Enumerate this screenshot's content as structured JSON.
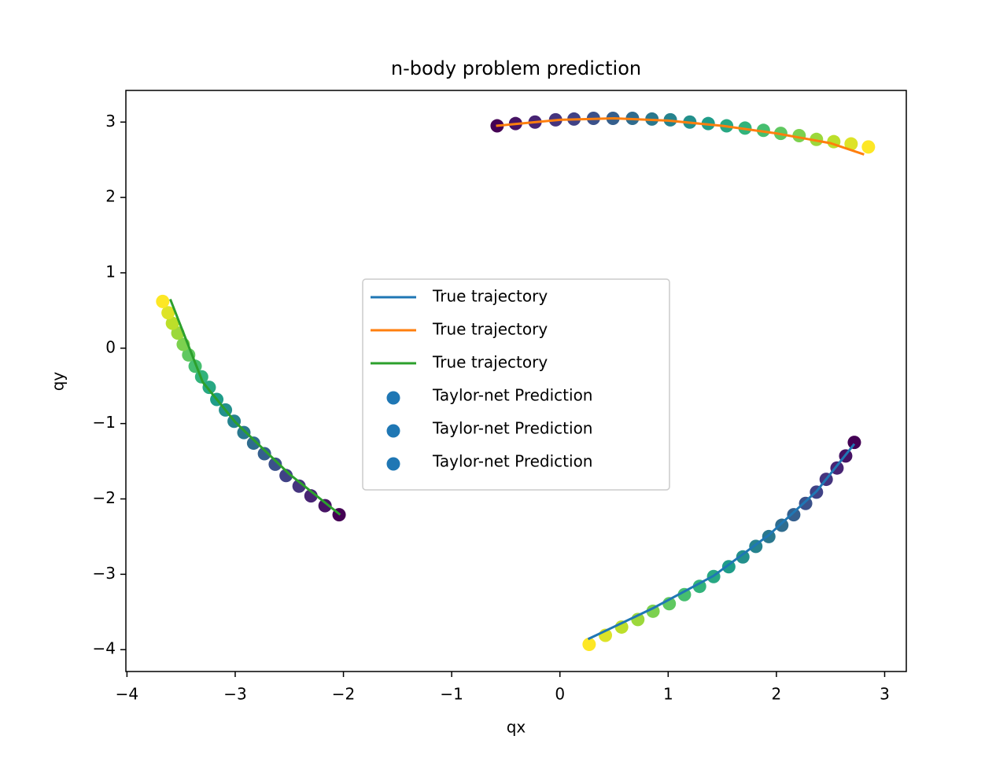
{
  "chart_data": {
    "type": "line",
    "title": "n-body problem prediction",
    "x_label": "qx",
    "y_label": "qy",
    "xlim": [
      -4.01,
      3.2
    ],
    "ylim": [
      -4.29,
      3.42
    ],
    "xticks": [
      {
        "value": -4,
        "label": "−4"
      },
      {
        "value": -3,
        "label": "−3"
      },
      {
        "value": -2,
        "label": "−2"
      },
      {
        "value": -1,
        "label": "−1"
      },
      0,
      1,
      2,
      3
    ],
    "yticks": [
      {
        "value": -4,
        "label": "−4"
      },
      {
        "value": -3,
        "label": "−3"
      },
      {
        "value": -2,
        "label": "−2"
      },
      {
        "value": -1,
        "label": "−1"
      },
      0,
      1,
      2,
      3
    ],
    "legend": "center",
    "series": [
      {
        "name": "True trajectory",
        "type": "line",
        "color": "#1f77b4",
        "x": [
          2.72,
          2.37,
          1.93,
          1.42,
          0.86,
          0.26
        ],
        "y": [
          -1.27,
          -1.9,
          -2.48,
          -3.02,
          -3.45,
          -3.86
        ]
      },
      {
        "name": "True trajectory",
        "type": "line",
        "color": "#ff7f0e",
        "x": [
          -0.59,
          0.0,
          0.5,
          1.0,
          1.5,
          2.0,
          2.5,
          2.81
        ],
        "y": [
          2.95,
          3.03,
          3.05,
          3.02,
          2.95,
          2.85,
          2.72,
          2.57
        ]
      },
      {
        "name": "True trajectory",
        "type": "line",
        "color": "#2ca02c",
        "x": [
          -2.03,
          -2.5,
          -3.0,
          -3.3,
          -3.6
        ],
        "y": [
          -2.21,
          -1.67,
          -0.98,
          -0.45,
          0.65
        ]
      },
      {
        "name": "Taylor-net Prediction",
        "type": "scatter",
        "color": "#1f77b4",
        "colormap": "viridis",
        "x": [
          2.72,
          2.64,
          2.56,
          2.46,
          2.37,
          2.27,
          2.16,
          2.05,
          1.93,
          1.81,
          1.69,
          1.56,
          1.42,
          1.29,
          1.15,
          1.01,
          0.86,
          0.72,
          0.57,
          0.42,
          0.27
        ],
        "y": [
          -1.25,
          -1.43,
          -1.59,
          -1.74,
          -1.91,
          -2.06,
          -2.21,
          -2.35,
          -2.5,
          -2.63,
          -2.77,
          -2.9,
          -3.03,
          -3.16,
          -3.27,
          -3.39,
          -3.49,
          -3.6,
          -3.7,
          -3.81,
          -3.93
        ]
      },
      {
        "name": "Taylor-net Prediction",
        "type": "scatter",
        "color": "#1f77b4",
        "colormap": "viridis",
        "x": [
          -0.58,
          -0.41,
          -0.23,
          -0.04,
          0.13,
          0.31,
          0.49,
          0.67,
          0.85,
          1.02,
          1.2,
          1.37,
          1.54,
          1.71,
          1.88,
          2.04,
          2.21,
          2.37,
          2.53,
          2.69,
          2.85
        ],
        "y": [
          2.95,
          2.98,
          3.0,
          3.03,
          3.04,
          3.05,
          3.05,
          3.05,
          3.04,
          3.03,
          3.0,
          2.98,
          2.95,
          2.92,
          2.89,
          2.85,
          2.82,
          2.77,
          2.74,
          2.71,
          2.67
        ]
      },
      {
        "name": "Taylor-net Prediction",
        "type": "scatter",
        "color": "#1f77b4",
        "colormap": "viridis",
        "x": [
          -2.04,
          -2.17,
          -2.3,
          -2.41,
          -2.53,
          -2.63,
          -2.73,
          -2.83,
          -2.92,
          -3.01,
          -3.09,
          -3.17,
          -3.24,
          -3.31,
          -3.37,
          -3.43,
          -3.48,
          -3.53,
          -3.58,
          -3.62,
          -3.67
        ],
        "y": [
          -2.21,
          -2.09,
          -1.96,
          -1.83,
          -1.69,
          -1.54,
          -1.4,
          -1.26,
          -1.12,
          -0.97,
          -0.82,
          -0.68,
          -0.52,
          -0.38,
          -0.24,
          -0.09,
          0.05,
          0.2,
          0.33,
          0.47,
          0.62
        ]
      }
    ]
  }
}
